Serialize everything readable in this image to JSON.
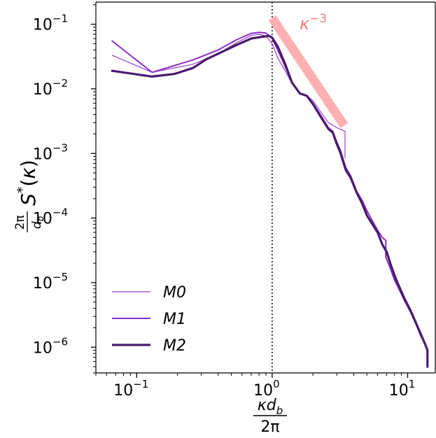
{
  "chart_data": {
    "type": "line",
    "xscale": "log",
    "yscale": "log",
    "xlim": [
      0.05,
      16
    ],
    "ylim": [
      4e-07,
      0.22
    ],
    "xlabel": "κd_b / 2π",
    "ylabel": "(2π/d_b) S*(κ)",
    "x_ticks": [
      {
        "value": 0.1,
        "label": "10",
        "exp": "−1"
      },
      {
        "value": 1,
        "label": "10",
        "exp": "0"
      },
      {
        "value": 10,
        "label": "10",
        "exp": "1"
      }
    ],
    "y_ticks": [
      {
        "value": 1e-06,
        "label": "10",
        "exp": "−6"
      },
      {
        "value": 1e-05,
        "label": "10",
        "exp": "−5"
      },
      {
        "value": 0.0001,
        "label": "10",
        "exp": "−4"
      },
      {
        "value": 0.001,
        "label": "10",
        "exp": "−3"
      },
      {
        "value": 0.01,
        "label": "10",
        "exp": "−2"
      },
      {
        "value": 0.1,
        "label": "10",
        "exp": "−1"
      }
    ],
    "vline": {
      "x": 1.0,
      "style": "dotted",
      "color": "#000000"
    },
    "reference_line": {
      "label": "κ",
      "exp": "−3",
      "color": "#ffb0b0",
      "x": [
        1.0,
        3.4
      ],
      "y": [
        0.125,
        0.0027
      ]
    },
    "series": [
      {
        "name": "M0",
        "color": "#9a3fd0",
        "width": 1.2,
        "x": [
          0.066,
          0.13,
          0.26,
          0.4,
          0.55,
          0.7,
          0.8,
          0.9,
          1.0,
          1.1,
          1.25,
          1.4,
          1.6,
          1.8,
          2.0,
          2.3,
          2.6,
          3.0,
          3.3,
          3.45,
          3.45
        ],
        "y": [
          0.033,
          0.018,
          0.024,
          0.035,
          0.052,
          0.067,
          0.07,
          0.066,
          0.05,
          0.03,
          0.019,
          0.012,
          0.0085,
          0.008,
          0.0065,
          0.0043,
          0.003,
          0.0025,
          0.0023,
          0.0022,
          0.00085
        ]
      },
      {
        "name": "M1",
        "color": "#8a2ec8",
        "width": 2,
        "x": [
          0.066,
          0.13,
          0.26,
          0.4,
          0.55,
          0.7,
          0.8,
          0.9,
          1.0,
          1.1,
          1.25,
          1.4,
          1.6,
          1.8,
          2.0,
          2.3,
          2.6,
          2.8,
          3.0,
          3.2,
          3.5,
          3.8,
          4.2,
          4.6,
          5.0,
          5.5,
          6.0,
          6.5,
          6.9,
          6.9,
          7.5,
          8.0,
          8.5,
          9.5,
          10.5,
          11.5,
          12.5,
          13.5,
          14.0
        ],
        "y": [
          0.055,
          0.018,
          0.028,
          0.04,
          0.058,
          0.072,
          0.075,
          0.073,
          0.06,
          0.04,
          0.022,
          0.0125,
          0.0085,
          0.0078,
          0.006,
          0.0038,
          0.0025,
          0.0022,
          0.0015,
          0.0011,
          0.0006,
          0.00045,
          0.00026,
          0.00019,
          0.00013,
          9e-05,
          6.5e-05,
          5e-05,
          4.5e-05,
          2.5e-05,
          1.6e-05,
          1.1e-05,
          8.5e-06,
          5.2e-06,
          3.5e-06,
          2.3e-06,
          1.5e-06,
          1.1e-06,
          8.5e-07
        ]
      },
      {
        "name": "M2",
        "color": "#4a1a6e",
        "width": 3.2,
        "x": [
          0.066,
          0.13,
          0.19,
          0.26,
          0.33,
          0.4,
          0.55,
          0.7,
          0.85,
          0.95,
          1.0,
          1.1,
          1.25,
          1.4,
          1.6,
          1.8,
          2.0,
          2.3,
          2.6,
          2.8,
          3.0,
          3.2,
          3.5,
          3.8,
          4.2,
          4.6,
          5.0,
          5.5,
          6.0,
          6.5,
          7.0,
          7.5,
          8.0,
          8.5,
          9.5,
          10.5,
          11.5,
          12.5,
          13.5,
          14.0,
          14.0
        ],
        "y": [
          0.019,
          0.0155,
          0.017,
          0.021,
          0.029,
          0.035,
          0.048,
          0.06,
          0.064,
          0.066,
          0.062,
          0.045,
          0.024,
          0.0125,
          0.0085,
          0.0078,
          0.0058,
          0.0036,
          0.0024,
          0.0021,
          0.0014,
          0.001,
          0.00055,
          0.00042,
          0.00025,
          0.00017,
          0.00011,
          8e-05,
          6e-05,
          3.9e-05,
          3e-05,
          1.9e-05,
          1.3e-05,
          9.5e-06,
          5.6e-06,
          3.7e-06,
          2.4e-06,
          1.6e-06,
          1.1e-06,
          9e-07,
          5e-07
        ]
      }
    ],
    "legend": {
      "position": "lower-left"
    }
  }
}
